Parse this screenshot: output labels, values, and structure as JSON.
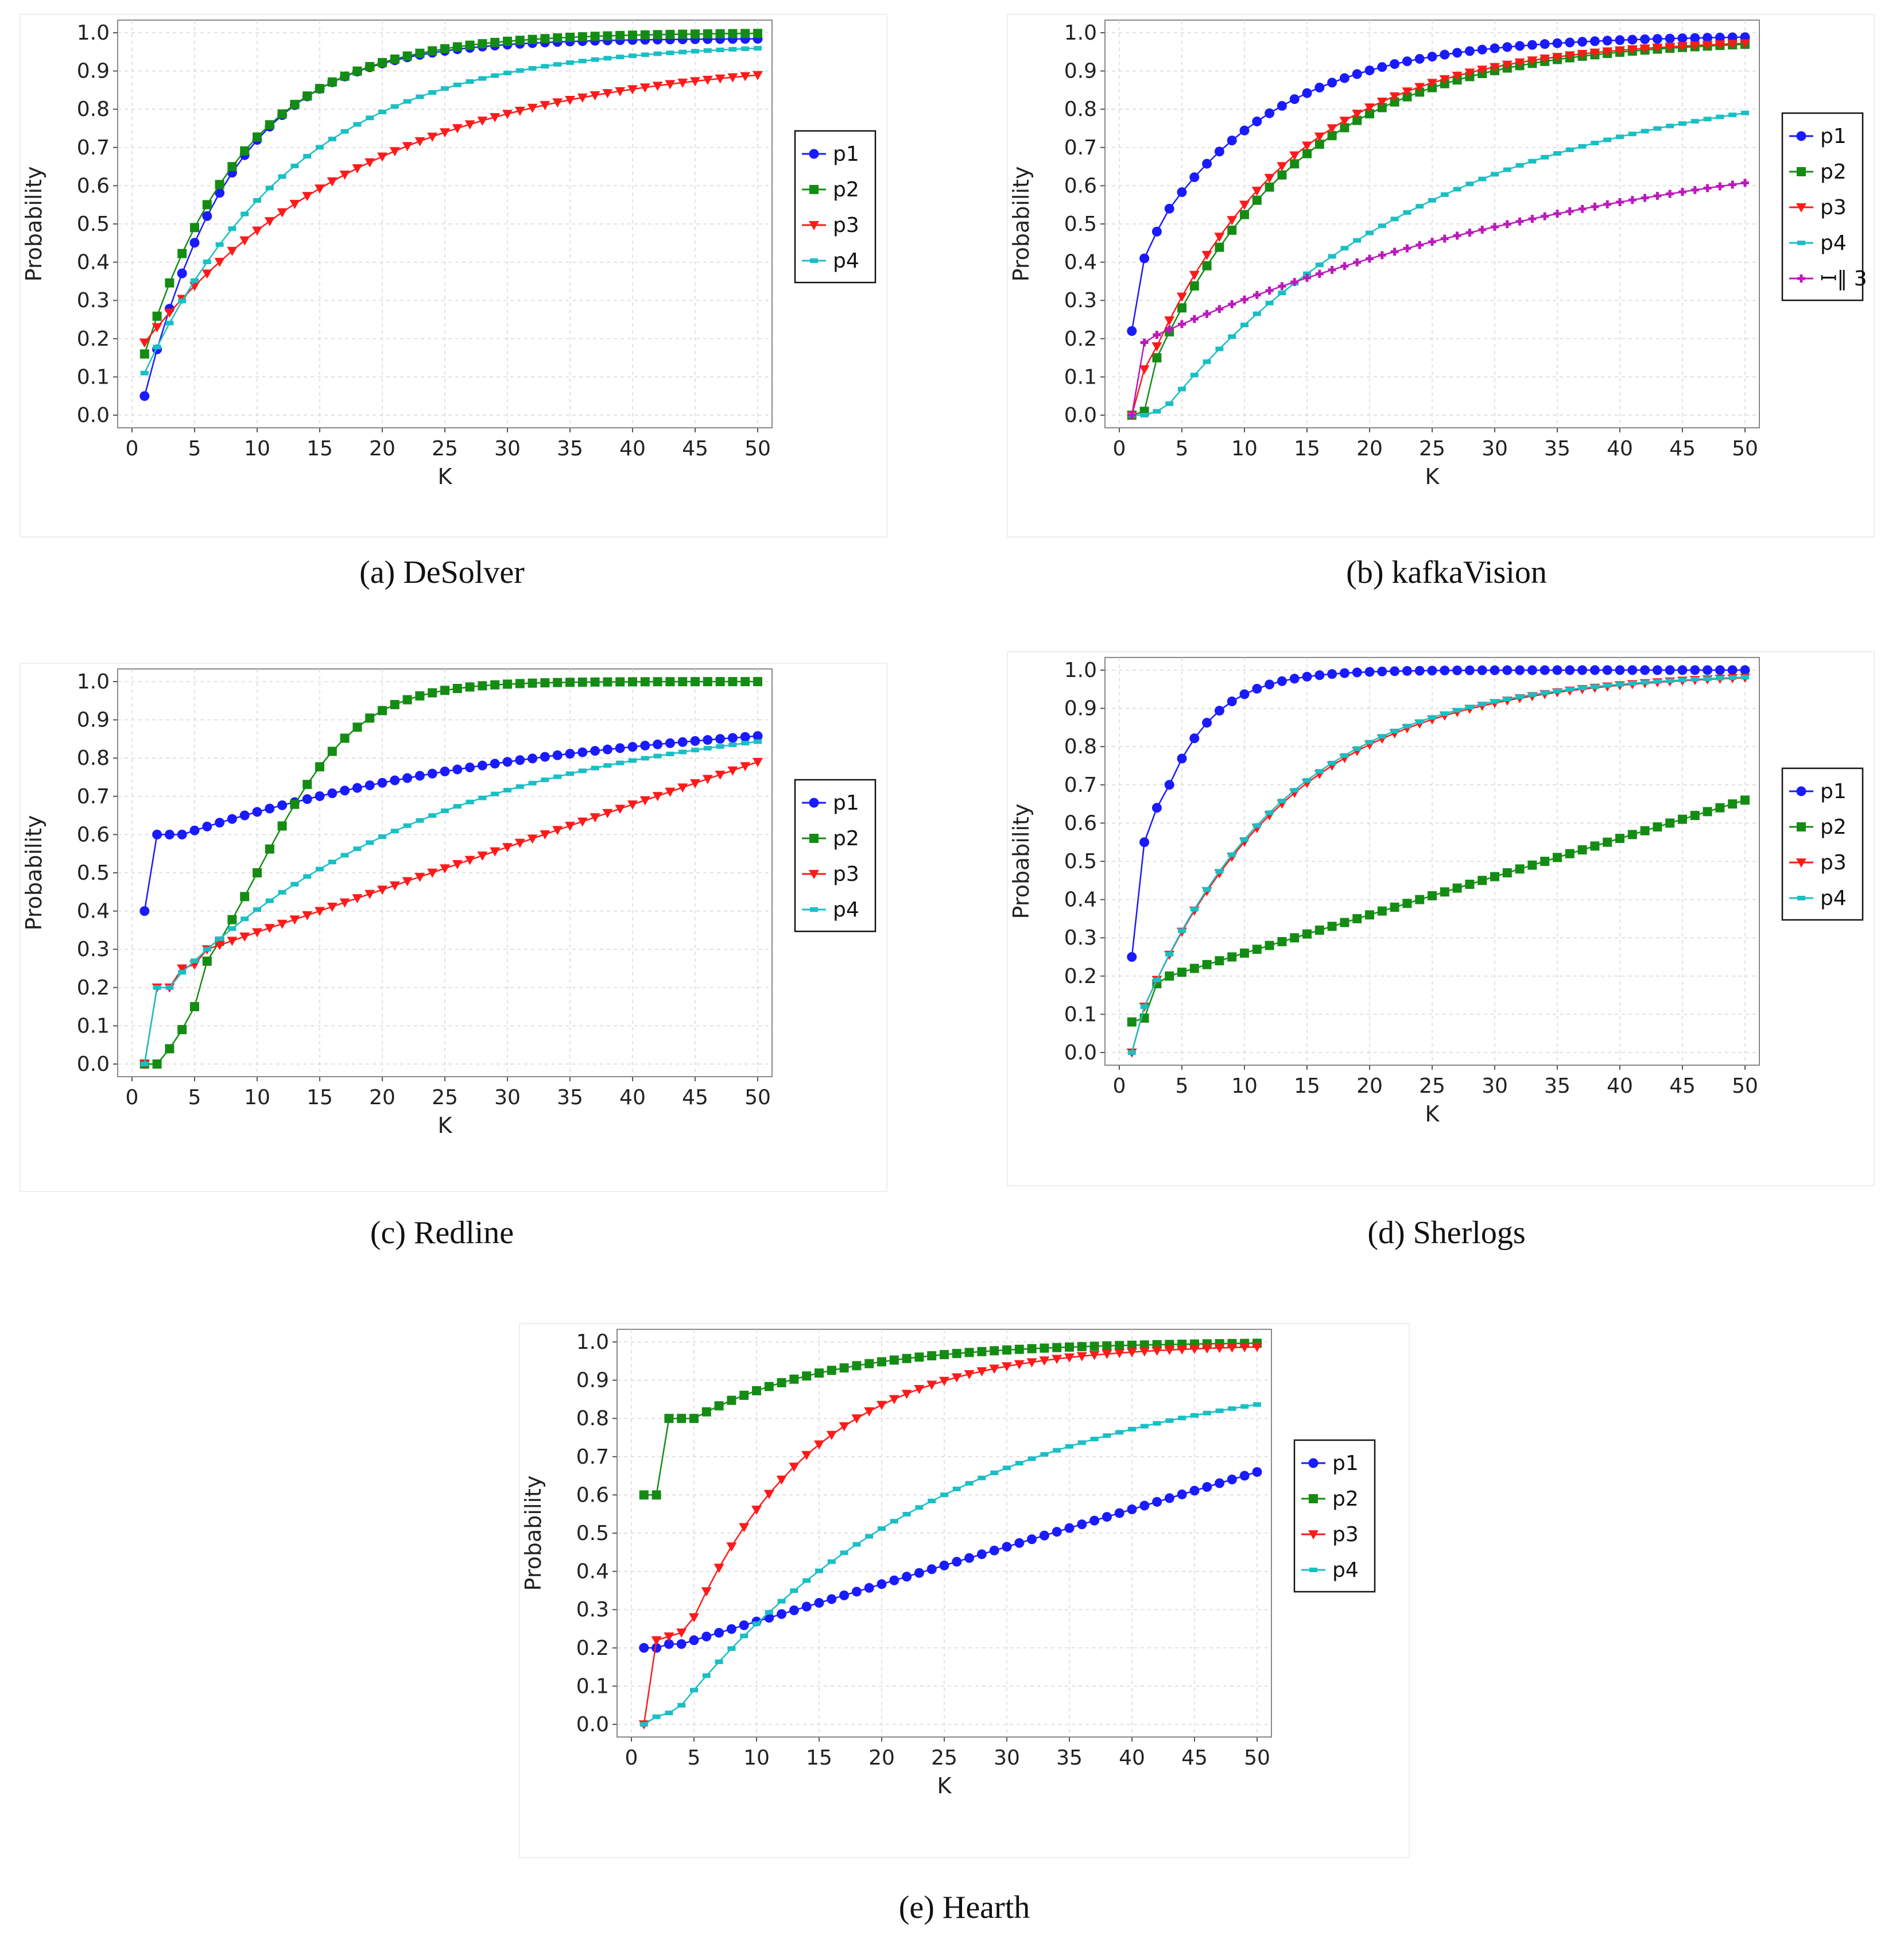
{
  "figure": {
    "captions": [
      "(a) DeSolver",
      "(b) kafkaVision",
      "(c) Redline",
      "(d) Sherlogs",
      "(e) Hearth"
    ]
  },
  "chart_data": [
    {
      "type": "line",
      "title": "(a) DeSolver",
      "xlabel": "K",
      "ylabel": "Probability",
      "xlim": [
        0,
        50
      ],
      "ylim": [
        0,
        1.0
      ],
      "xticks": [
        0,
        5,
        10,
        15,
        20,
        25,
        30,
        35,
        40,
        45,
        50
      ],
      "yticks": [
        0.0,
        0.1,
        0.2,
        0.3,
        0.4,
        0.5,
        0.6,
        0.7,
        0.8,
        0.9,
        1.0
      ],
      "grid": true,
      "legend": "right",
      "series": [
        {
          "name": "p1",
          "color": "#1a1aff",
          "marker": "circle",
          "model": "exp",
          "start": 0.05,
          "end": 0.985,
          "rate": 0.14
        },
        {
          "name": "p2",
          "color": "#148c14",
          "marker": "square",
          "model": "exp",
          "start": 0.16,
          "end": 1.0,
          "rate": 0.125
        },
        {
          "name": "p3",
          "color": "#ff1a1a",
          "marker": "triangle-down",
          "model": "exp",
          "start": 0.19,
          "end": 0.94,
          "rate": 0.055
        },
        {
          "name": "p4",
          "color": "#19bfc4",
          "marker": "dash",
          "model": "exp",
          "start": 0.11,
          "end": 0.975,
          "rate": 0.082
        }
      ]
    },
    {
      "type": "line",
      "title": "(b) kafkaVision",
      "xlabel": "K",
      "ylabel": "Probability",
      "xlim": [
        0,
        50
      ],
      "ylim": [
        0,
        1.0
      ],
      "xticks": [
        0,
        5,
        10,
        15,
        20,
        25,
        30,
        35,
        40,
        45,
        50
      ],
      "yticks": [
        0.0,
        0.1,
        0.2,
        0.3,
        0.4,
        0.5,
        0.6,
        0.7,
        0.8,
        0.9,
        1.0
      ],
      "grid": true,
      "legend": "right",
      "series": [
        {
          "name": "p1",
          "color": "#1a1aff",
          "marker": "circle",
          "model": "exp",
          "start": 0.22,
          "end": 0.993,
          "rate": 0.1,
          "points": [
            [
              1,
              0.22
            ],
            [
              2,
              0.41
            ],
            [
              3,
              0.48
            ],
            [
              4,
              0.54
            ]
          ]
        },
        {
          "name": "p2",
          "color": "#148c14",
          "marker": "square",
          "model": "exp",
          "start": 0.0,
          "end": 0.985,
          "rate": 0.085,
          "points": [
            [
              1,
              0.0
            ],
            [
              2,
              0.01
            ],
            [
              3,
              0.15
            ]
          ]
        },
        {
          "name": "p3",
          "color": "#ff1a1a",
          "marker": "triangle-down",
          "model": "exp",
          "start": 0.0,
          "end": 0.985,
          "rate": 0.088,
          "points": [
            [
              1,
              0.0
            ],
            [
              2,
              0.12
            ],
            [
              3,
              0.18
            ]
          ]
        },
        {
          "name": "p4",
          "color": "#19bfc4",
          "marker": "dash",
          "model": "exp",
          "start": 0.0,
          "end": 0.9,
          "rate": 0.045,
          "points": [
            [
              1,
              0.0
            ],
            [
              2,
              0.0
            ],
            [
              3,
              0.01
            ],
            [
              4,
              0.03
            ]
          ]
        },
        {
          "name": "ꟷ‖ 3",
          "color": "#bb19bb",
          "marker": "plus",
          "model": "exp",
          "start": 0.19,
          "end": 0.785,
          "rate": 0.025,
          "points": [
            [
              1,
              0.0
            ],
            [
              2,
              0.19
            ],
            [
              3,
              0.21
            ]
          ]
        }
      ]
    },
    {
      "type": "line",
      "title": "(c) Redline",
      "xlabel": "K",
      "ylabel": "Probability",
      "xlim": [
        0,
        50
      ],
      "ylim": [
        0,
        1.0
      ],
      "xticks": [
        0,
        5,
        10,
        15,
        20,
        25,
        30,
        35,
        40,
        45,
        50
      ],
      "yticks": [
        0.0,
        0.1,
        0.2,
        0.3,
        0.4,
        0.5,
        0.6,
        0.7,
        0.8,
        0.9,
        1.0
      ],
      "grid": true,
      "legend": "right",
      "series": [
        {
          "name": "p1",
          "color": "#1a1aff",
          "marker": "circle",
          "model": "exp",
          "start": 0.6,
          "end": 0.93,
          "rate": 0.033,
          "points": [
            [
              1,
              0.4
            ],
            [
              2,
              0.6
            ],
            [
              3,
              0.6
            ],
            [
              4,
              0.6
            ]
          ]
        },
        {
          "name": "p2",
          "color": "#148c14",
          "marker": "logistic",
          "model": "logistic",
          "start": 0.0,
          "end": 1.0,
          "mid": 10,
          "steep": 0.25,
          "points": [
            [
              1,
              0.0
            ],
            [
              2,
              0.0
            ],
            [
              3,
              0.04
            ],
            [
              4,
              0.09
            ],
            [
              5,
              0.15
            ]
          ],
          "marker_shape": "square"
        },
        {
          "name": "p3",
          "color": "#ff1a1a",
          "marker": "triangle-down",
          "model": "lin",
          "start": 0.3,
          "end": 0.79,
          "rate": 0.0,
          "points": [
            [
              1,
              0.0
            ],
            [
              2,
              0.2
            ],
            [
              3,
              0.2
            ],
            [
              4,
              0.25
            ],
            [
              5,
              0.26
            ],
            [
              6,
              0.3
            ]
          ]
        },
        {
          "name": "p4",
          "color": "#19bfc4",
          "marker": "dash",
          "model": "exp",
          "start": 0.2,
          "end": 0.93,
          "rate": 0.045,
          "points": [
            [
              1,
              0.0
            ],
            [
              2,
              0.2
            ],
            [
              3,
              0.2
            ],
            [
              4,
              0.24
            ],
            [
              5,
              0.27
            ],
            [
              6,
              0.3
            ]
          ]
        }
      ]
    },
    {
      "type": "line",
      "title": "(d) Sherlogs",
      "xlabel": "K",
      "ylabel": "Probability",
      "xlim": [
        0,
        50
      ],
      "ylim": [
        0,
        1.0
      ],
      "xticks": [
        0,
        5,
        10,
        15,
        20,
        25,
        30,
        35,
        40,
        45,
        50
      ],
      "yticks": [
        0.0,
        0.1,
        0.2,
        0.3,
        0.4,
        0.5,
        0.6,
        0.7,
        0.8,
        0.9,
        1.0
      ],
      "grid": true,
      "legend": "right",
      "series": [
        {
          "name": "p1",
          "color": "#1a1aff",
          "marker": "circle",
          "model": "exp",
          "start": 0.25,
          "end": 1.0,
          "rate": 0.26,
          "points": [
            [
              1,
              0.25
            ],
            [
              2,
              0.55
            ],
            [
              3,
              0.64
            ],
            [
              4,
              0.7
            ]
          ]
        },
        {
          "name": "p2",
          "color": "#148c14",
          "marker": "square",
          "model": "lin",
          "start": 0.2,
          "end": 0.66,
          "rate": 0.0,
          "points": [
            [
              1,
              0.08
            ],
            [
              2,
              0.09
            ],
            [
              3,
              0.18
            ],
            [
              4,
              0.2
            ]
          ]
        },
        {
          "name": "p3",
          "color": "#ff1a1a",
          "marker": "triangle-down",
          "model": "exp",
          "start": 0.0,
          "end": 0.995,
          "rate": 0.085,
          "points": [
            [
              1,
              0.0
            ],
            [
              2,
              0.12
            ],
            [
              3,
              0.19
            ]
          ]
        },
        {
          "name": "p4",
          "color": "#19bfc4",
          "marker": "dash",
          "model": "exp",
          "start": 0.0,
          "end": 0.995,
          "rate": 0.087,
          "points": [
            [
              1,
              0.0
            ],
            [
              2,
              0.12
            ],
            [
              3,
              0.19
            ]
          ]
        }
      ]
    },
    {
      "type": "line",
      "title": "(e) Hearth",
      "xlabel": "K",
      "ylabel": "Probability",
      "xlim": [
        0,
        50
      ],
      "ylim": [
        0,
        1.0
      ],
      "xticks": [
        0,
        5,
        10,
        15,
        20,
        25,
        30,
        35,
        40,
        45,
        50
      ],
      "yticks": [
        0.0,
        0.1,
        0.2,
        0.3,
        0.4,
        0.5,
        0.6,
        0.7,
        0.8,
        0.9,
        1.0
      ],
      "grid": true,
      "legend": "right",
      "series": [
        {
          "name": "p1",
          "color": "#1a1aff",
          "marker": "circle",
          "model": "lin",
          "start": 0.2,
          "end": 0.66,
          "rate": 0.0,
          "points": [
            [
              1,
              0.2
            ],
            [
              2,
              0.2
            ],
            [
              3,
              0.21
            ],
            [
              4,
              0.21
            ],
            [
              5,
              0.22
            ]
          ]
        },
        {
          "name": "p2",
          "color": "#148c14",
          "marker": "square",
          "model": "exp",
          "start": 0.8,
          "end": 1.0,
          "rate": 0.09,
          "points": [
            [
              1,
              0.6
            ],
            [
              2,
              0.6
            ],
            [
              3,
              0.8
            ],
            [
              4,
              0.8
            ],
            [
              5,
              0.8
            ]
          ]
        },
        {
          "name": "p3",
          "color": "#ff1a1a",
          "marker": "triangle-down",
          "model": "exp",
          "start": 0.28,
          "end": 0.995,
          "rate": 0.1,
          "points": [
            [
              1,
              0.0
            ],
            [
              2,
              0.22
            ],
            [
              3,
              0.23
            ],
            [
              4,
              0.24
            ],
            [
              5,
              0.28
            ]
          ]
        },
        {
          "name": "p4",
          "color": "#19bfc4",
          "marker": "dash",
          "model": "exp",
          "start": 0.02,
          "end": 0.95,
          "rate": 0.045,
          "points": [
            [
              1,
              0.0
            ],
            [
              2,
              0.02
            ],
            [
              3,
              0.03
            ],
            [
              4,
              0.05
            ]
          ]
        }
      ]
    }
  ]
}
